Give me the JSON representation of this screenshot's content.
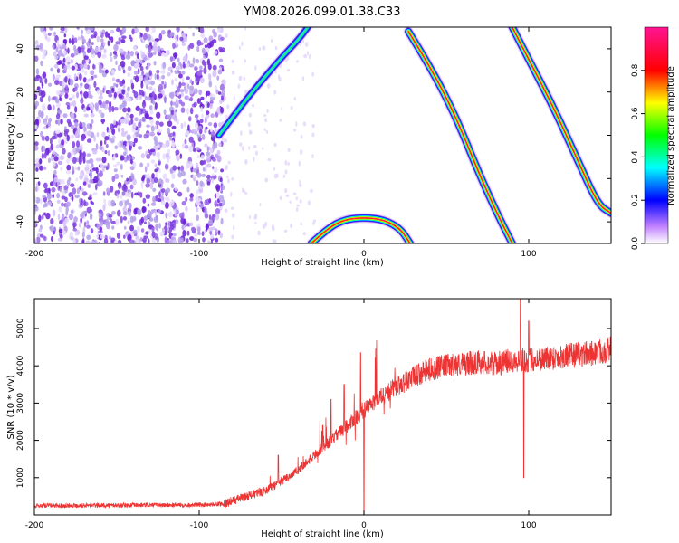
{
  "title": "YM08.2026.099.01.38.C33",
  "chart_data": [
    {
      "type": "heatmap",
      "xlabel": "Height of straight line (km)",
      "ylabel": "Frequency (Hz)",
      "xlim": [
        -200,
        150
      ],
      "ylim": [
        -50,
        50
      ],
      "xticks": [
        -200,
        -100,
        0,
        100
      ],
      "yticks": [
        -40,
        -20,
        0,
        20,
        40
      ],
      "colorbar": {
        "label": "Normalized spectral amplitude",
        "range": [
          0,
          1
        ],
        "ticks": [
          0.0,
          0.2,
          0.4,
          0.6,
          0.8
        ],
        "colormap": [
          "#ffffff",
          "#8a2be2",
          "#0000ff",
          "#00ffff",
          "#00ff00",
          "#ffff00",
          "#ff0000",
          "#ff1493"
        ]
      },
      "features": [
        {
          "name": "noise-region",
          "x_range": [
            -200,
            -85
          ],
          "y_range": [
            -50,
            50
          ],
          "level": 0.15
        },
        {
          "name": "rising-streak",
          "points": [
            [
              -88,
              0
            ],
            [
              -80,
              8
            ],
            [
              -70,
              18
            ],
            [
              -60,
              27
            ],
            [
              -50,
              36
            ],
            [
              -40,
              44
            ],
            [
              -34,
              50
            ]
          ],
          "level": 0.45
        },
        {
          "name": "arc-bottom",
          "points": [
            [
              -32,
              -50
            ],
            [
              -22,
              -43
            ],
            [
              -12,
              -39
            ],
            [
              0,
              -38
            ],
            [
              12,
              -39
            ],
            [
              22,
              -43
            ],
            [
              28,
              -50
            ]
          ],
          "level": 0.85
        },
        {
          "name": "descending-curve-1",
          "points": [
            [
              27,
              48
            ],
            [
              40,
              32
            ],
            [
              55,
              10
            ],
            [
              70,
              -18
            ],
            [
              82,
              -38
            ],
            [
              90,
              -50
            ]
          ],
          "level": 0.85
        },
        {
          "name": "descending-curve-2",
          "points": [
            [
              90,
              50
            ],
            [
              100,
              35
            ],
            [
              115,
              13
            ],
            [
              130,
              -12
            ],
            [
              142,
              -32
            ],
            [
              150,
              -36
            ]
          ],
          "level": 0.85
        }
      ]
    },
    {
      "type": "line",
      "xlabel": "Height of straight line (km)",
      "ylabel": "SNR (10 * v/v)",
      "xlim": [
        -200,
        150
      ],
      "ylim": [
        0,
        5800
      ],
      "xticks": [
        -200,
        -100,
        0,
        100
      ],
      "yticks": [
        1000,
        2000,
        3000,
        4000,
        5000
      ],
      "color": "#ee3333",
      "series_outline": [
        [
          -200,
          250
        ],
        [
          -150,
          260
        ],
        [
          -100,
          270
        ],
        [
          -85,
          300
        ],
        [
          -75,
          450
        ],
        [
          -60,
          650
        ],
        [
          -50,
          900
        ],
        [
          -40,
          1200
        ],
        [
          -30,
          1600
        ],
        [
          -20,
          2000
        ],
        [
          -10,
          2400
        ],
        [
          0,
          2800
        ],
        [
          10,
          3150
        ],
        [
          20,
          3450
        ],
        [
          30,
          3700
        ],
        [
          40,
          3900
        ],
        [
          50,
          4000
        ],
        [
          60,
          4050
        ],
        [
          70,
          4100
        ],
        [
          80,
          4050
        ],
        [
          90,
          4150
        ],
        [
          100,
          4150
        ],
        [
          110,
          4200
        ],
        [
          120,
          4250
        ],
        [
          130,
          4300
        ],
        [
          140,
          4350
        ],
        [
          150,
          4450
        ]
      ],
      "spikes": [
        [
          -52,
          1600
        ],
        [
          -25,
          2400
        ],
        [
          -20,
          3100
        ],
        [
          -12,
          3500
        ],
        [
          -2,
          4350
        ],
        [
          0,
          0
        ],
        [
          95,
          5800
        ],
        [
          97,
          1000
        ],
        [
          100,
          5200
        ]
      ]
    }
  ]
}
